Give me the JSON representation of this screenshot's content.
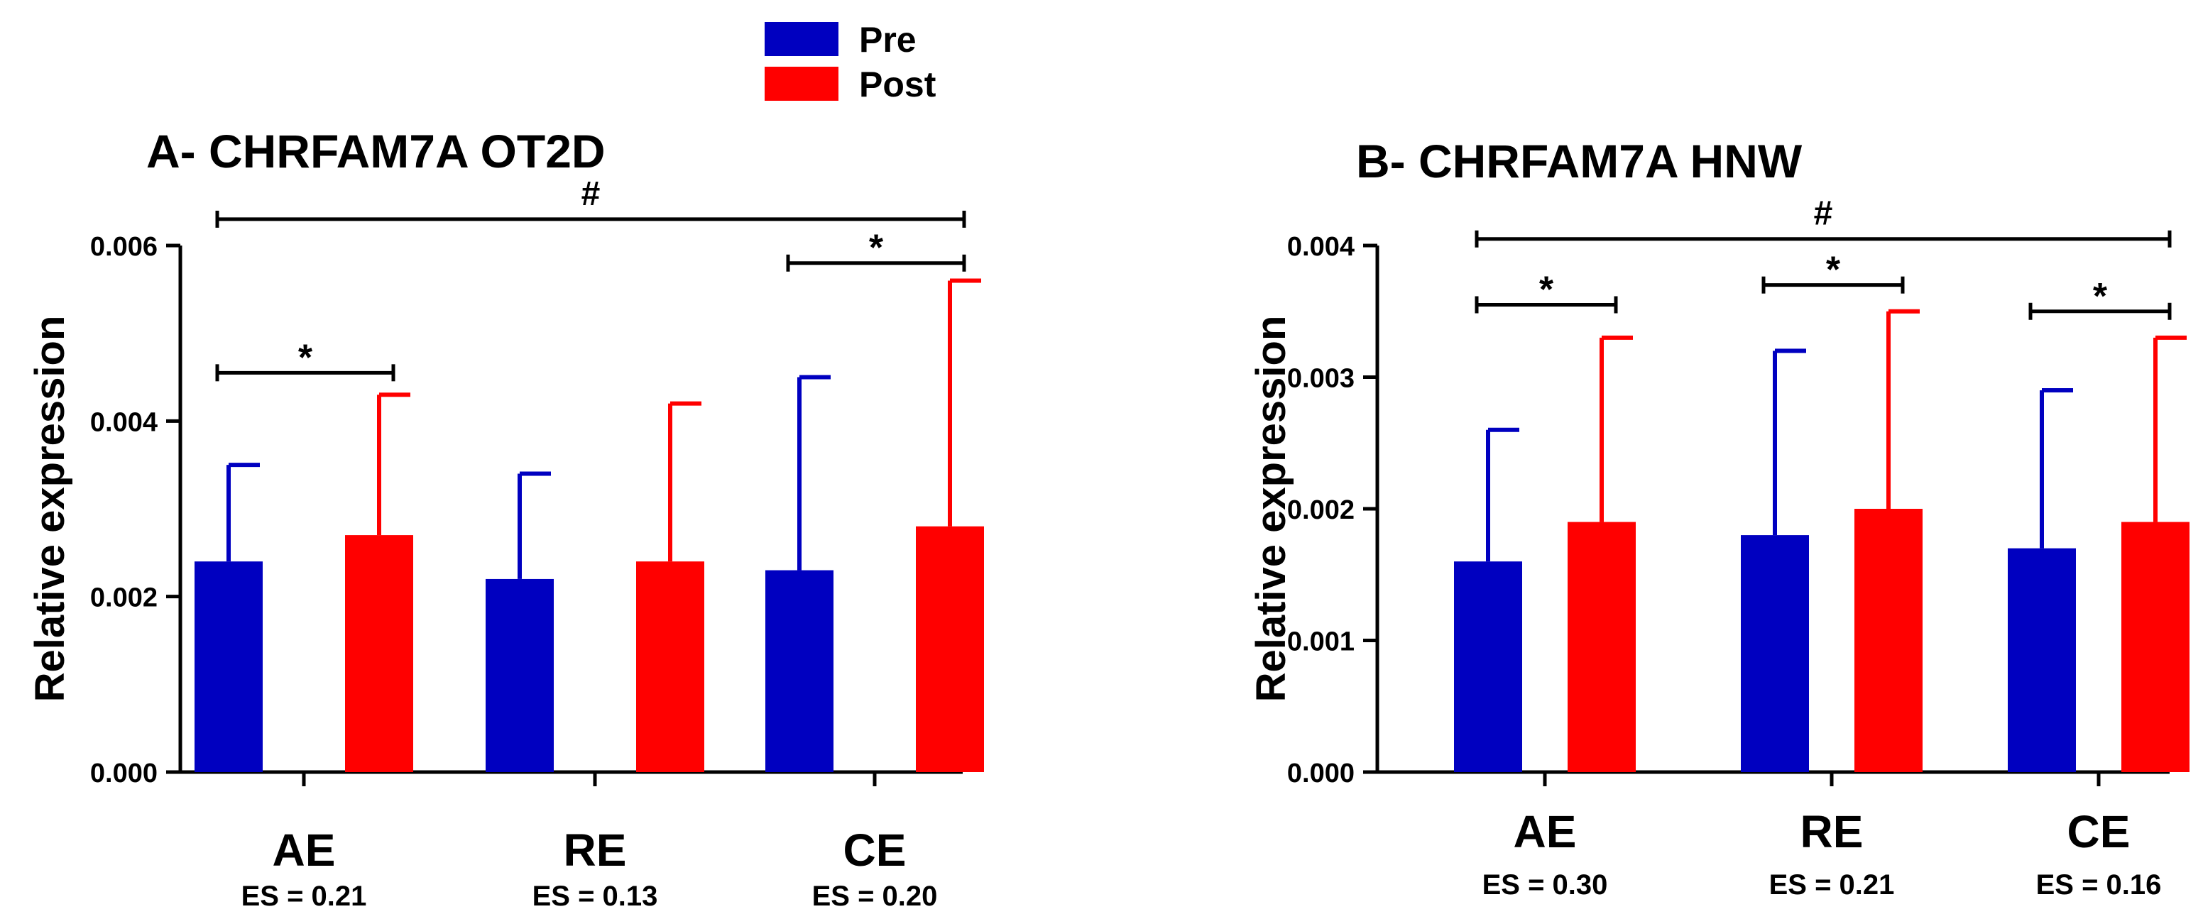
{
  "legend": {
    "items": [
      {
        "label": "Pre",
        "color": "#0000c0"
      },
      {
        "label": "Post",
        "color": "#ff0000"
      }
    ]
  },
  "chart_data": [
    {
      "type": "bar",
      "title": "A- CHRFAM7A OT2D",
      "xlabel": "",
      "ylabel": "Relative expression",
      "ylim": [
        0,
        0.006
      ],
      "yticks": [
        0.0,
        0.002,
        0.004,
        0.006
      ],
      "ytick_labels": [
        "0.000",
        "0.002",
        "0.004",
        "0.006"
      ],
      "categories": [
        "AE",
        "RE",
        "CE"
      ],
      "effect_sizes": [
        "ES = 0.21",
        "ES = 0.13",
        "ES = 0.20"
      ],
      "series": [
        {
          "name": "Pre",
          "color": "#0000c0",
          "values": [
            0.0024,
            0.0022,
            0.0023
          ],
          "error_upper": [
            0.0035,
            0.0034,
            0.0045
          ]
        },
        {
          "name": "Post",
          "color": "#ff0000",
          "values": [
            0.0027,
            0.0024,
            0.0028
          ],
          "error_upper": [
            0.0043,
            0.0042,
            0.0056
          ]
        }
      ],
      "annotations": [
        {
          "type": "pair",
          "category": "AE",
          "text": "*",
          "y": 0.00455
        },
        {
          "type": "pair",
          "category": "CE",
          "text": "*",
          "y": 0.0058
        },
        {
          "type": "span",
          "from": "AE",
          "to": "CE",
          "text": "#",
          "y": 0.0063
        }
      ]
    },
    {
      "type": "bar",
      "title": "B- CHRFAM7A HNW",
      "xlabel": "",
      "ylabel": "Relative expression",
      "ylim": [
        0,
        0.004
      ],
      "yticks": [
        0.0,
        0.001,
        0.002,
        0.003,
        0.004
      ],
      "ytick_labels": [
        "0.000",
        "0.001",
        "0.002",
        "0.003",
        "0.004"
      ],
      "categories": [
        "AE",
        "RE",
        "CE"
      ],
      "effect_sizes": [
        "ES = 0.30",
        "ES = 0.21",
        "ES = 0.16"
      ],
      "series": [
        {
          "name": "Pre",
          "color": "#0000c0",
          "values": [
            0.0016,
            0.0018,
            0.0017
          ],
          "error_upper": [
            0.0026,
            0.0032,
            0.0029
          ]
        },
        {
          "name": "Post",
          "color": "#ff0000",
          "values": [
            0.0019,
            0.002,
            0.0019
          ],
          "error_upper": [
            0.0033,
            0.0035,
            0.0033
          ]
        }
      ],
      "annotations": [
        {
          "type": "pair",
          "category": "AE",
          "text": "*",
          "y": 0.00355
        },
        {
          "type": "pair",
          "category": "RE",
          "text": "*",
          "y": 0.0037
        },
        {
          "type": "pair",
          "category": "CE",
          "text": "*",
          "y": 0.0035
        },
        {
          "type": "span",
          "from": "AE",
          "to": "CE",
          "text": "#",
          "y": 0.00405
        }
      ]
    }
  ]
}
